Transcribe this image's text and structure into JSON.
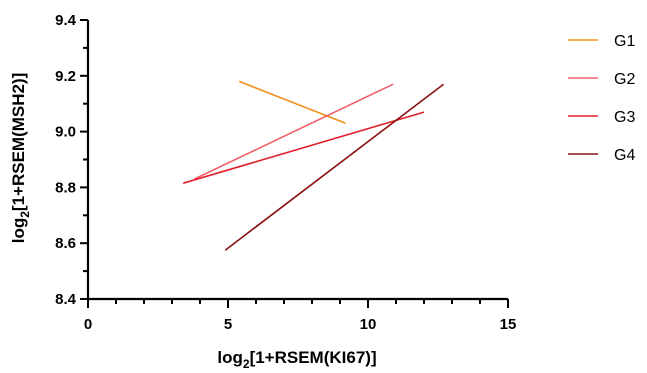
{
  "chart_data": {
    "type": "line",
    "xlabel": {
      "prefix": "log",
      "sub": "2",
      "suffix": "[1+RSEM(KI67)]"
    },
    "ylabel": {
      "prefix": "log",
      "sub": "2",
      "suffix": "[1+RSEM(MSH2)]"
    },
    "xlim": [
      0,
      15
    ],
    "ylim": [
      8.4,
      9.4
    ],
    "x_ticks": [
      0,
      5,
      10,
      15
    ],
    "x_tick_labels": [
      "0",
      "5",
      "10",
      "15"
    ],
    "y_ticks": [
      8.4,
      8.6,
      8.8,
      9.0,
      9.2,
      9.4
    ],
    "y_tick_labels": [
      "8.4",
      "8.6",
      "8.8",
      "9.0",
      "9.2",
      "9.4"
    ],
    "legend_position": "right",
    "series": [
      {
        "name": "G1",
        "color": "#f0901e",
        "points": [
          [
            5.4,
            9.18
          ],
          [
            9.2,
            9.03
          ]
        ]
      },
      {
        "name": "G2",
        "color": "#f0606a",
        "points": [
          [
            3.8,
            8.83
          ],
          [
            10.9,
            9.17
          ]
        ]
      },
      {
        "name": "G3",
        "color": "#e0202a",
        "points": [
          [
            3.4,
            8.815
          ],
          [
            12.0,
            9.07
          ]
        ]
      },
      {
        "name": "G4",
        "color": "#8b1010",
        "points": [
          [
            4.9,
            8.575
          ],
          [
            12.7,
            9.17
          ]
        ]
      }
    ]
  }
}
